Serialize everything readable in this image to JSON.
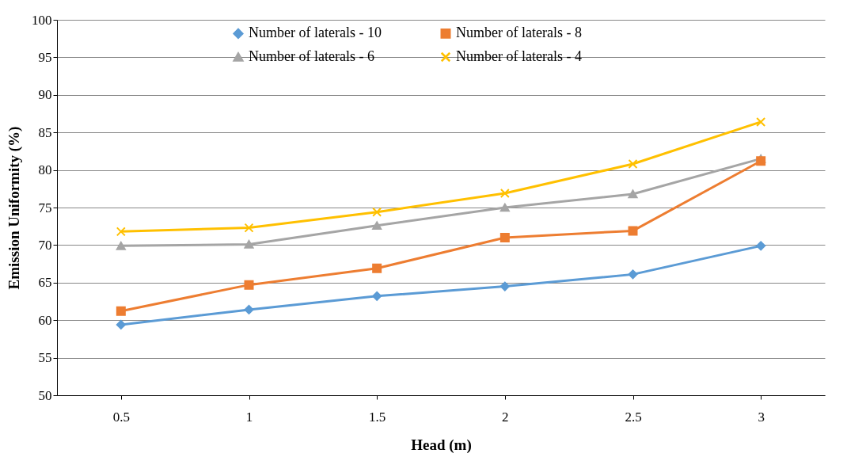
{
  "chart_data": {
    "type": "line",
    "xlabel": "Head (m)",
    "ylabel": "Emission Uniformity (%)",
    "categories": [
      "0.5",
      "1",
      "1.5",
      "2",
      "2.5",
      "3"
    ],
    "series": [
      {
        "name": "Number of laterals - 10",
        "color": "#5b9bd5",
        "marker": "diamond",
        "values": [
          59.4,
          61.4,
          63.2,
          64.5,
          66.1,
          69.9
        ]
      },
      {
        "name": "Number of laterals - 8",
        "color": "#ed7d31",
        "marker": "square",
        "values": [
          61.2,
          64.7,
          66.9,
          71.0,
          71.9,
          81.2
        ]
      },
      {
        "name": "Number of laterals - 6",
        "color": "#a5a5a5",
        "marker": "triangle",
        "values": [
          69.9,
          70.1,
          72.6,
          75.0,
          76.8,
          81.5
        ]
      },
      {
        "name": "Number of laterals - 4",
        "color": "#ffc000",
        "marker": "cross",
        "values": [
          71.8,
          72.3,
          74.4,
          76.9,
          80.8,
          86.4
        ]
      }
    ],
    "ylim": [
      50,
      100
    ],
    "yticks": [
      50,
      55,
      60,
      65,
      70,
      75,
      80,
      85,
      90,
      95,
      100
    ],
    "grid": "y",
    "legend": "top"
  }
}
